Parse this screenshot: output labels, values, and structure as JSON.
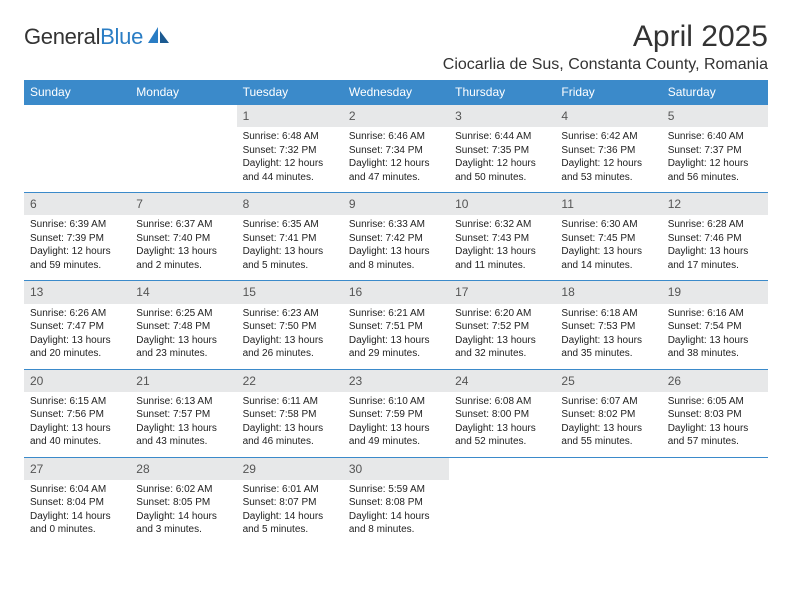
{
  "logo": {
    "part1": "General",
    "part2": "Blue"
  },
  "title": "April 2025",
  "location": "Ciocarlia de Sus, Constanta County, Romania",
  "colors": {
    "header_bg": "#3b8aca",
    "daynum_bg": "#e7e8e9",
    "page_bg": "#ffffff"
  },
  "day_headers": [
    "Sunday",
    "Monday",
    "Tuesday",
    "Wednesday",
    "Thursday",
    "Friday",
    "Saturday"
  ],
  "weeks": [
    [
      null,
      null,
      {
        "n": "1",
        "sr": "6:48 AM",
        "ss": "7:32 PM",
        "dl": "12 hours and 44 minutes."
      },
      {
        "n": "2",
        "sr": "6:46 AM",
        "ss": "7:34 PM",
        "dl": "12 hours and 47 minutes."
      },
      {
        "n": "3",
        "sr": "6:44 AM",
        "ss": "7:35 PM",
        "dl": "12 hours and 50 minutes."
      },
      {
        "n": "4",
        "sr": "6:42 AM",
        "ss": "7:36 PM",
        "dl": "12 hours and 53 minutes."
      },
      {
        "n": "5",
        "sr": "6:40 AM",
        "ss": "7:37 PM",
        "dl": "12 hours and 56 minutes."
      }
    ],
    [
      {
        "n": "6",
        "sr": "6:39 AM",
        "ss": "7:39 PM",
        "dl": "12 hours and 59 minutes."
      },
      {
        "n": "7",
        "sr": "6:37 AM",
        "ss": "7:40 PM",
        "dl": "13 hours and 2 minutes."
      },
      {
        "n": "8",
        "sr": "6:35 AM",
        "ss": "7:41 PM",
        "dl": "13 hours and 5 minutes."
      },
      {
        "n": "9",
        "sr": "6:33 AM",
        "ss": "7:42 PM",
        "dl": "13 hours and 8 minutes."
      },
      {
        "n": "10",
        "sr": "6:32 AM",
        "ss": "7:43 PM",
        "dl": "13 hours and 11 minutes."
      },
      {
        "n": "11",
        "sr": "6:30 AM",
        "ss": "7:45 PM",
        "dl": "13 hours and 14 minutes."
      },
      {
        "n": "12",
        "sr": "6:28 AM",
        "ss": "7:46 PM",
        "dl": "13 hours and 17 minutes."
      }
    ],
    [
      {
        "n": "13",
        "sr": "6:26 AM",
        "ss": "7:47 PM",
        "dl": "13 hours and 20 minutes."
      },
      {
        "n": "14",
        "sr": "6:25 AM",
        "ss": "7:48 PM",
        "dl": "13 hours and 23 minutes."
      },
      {
        "n": "15",
        "sr": "6:23 AM",
        "ss": "7:50 PM",
        "dl": "13 hours and 26 minutes."
      },
      {
        "n": "16",
        "sr": "6:21 AM",
        "ss": "7:51 PM",
        "dl": "13 hours and 29 minutes."
      },
      {
        "n": "17",
        "sr": "6:20 AM",
        "ss": "7:52 PM",
        "dl": "13 hours and 32 minutes."
      },
      {
        "n": "18",
        "sr": "6:18 AM",
        "ss": "7:53 PM",
        "dl": "13 hours and 35 minutes."
      },
      {
        "n": "19",
        "sr": "6:16 AM",
        "ss": "7:54 PM",
        "dl": "13 hours and 38 minutes."
      }
    ],
    [
      {
        "n": "20",
        "sr": "6:15 AM",
        "ss": "7:56 PM",
        "dl": "13 hours and 40 minutes."
      },
      {
        "n": "21",
        "sr": "6:13 AM",
        "ss": "7:57 PM",
        "dl": "13 hours and 43 minutes."
      },
      {
        "n": "22",
        "sr": "6:11 AM",
        "ss": "7:58 PM",
        "dl": "13 hours and 46 minutes."
      },
      {
        "n": "23",
        "sr": "6:10 AM",
        "ss": "7:59 PM",
        "dl": "13 hours and 49 minutes."
      },
      {
        "n": "24",
        "sr": "6:08 AM",
        "ss": "8:00 PM",
        "dl": "13 hours and 52 minutes."
      },
      {
        "n": "25",
        "sr": "6:07 AM",
        "ss": "8:02 PM",
        "dl": "13 hours and 55 minutes."
      },
      {
        "n": "26",
        "sr": "6:05 AM",
        "ss": "8:03 PM",
        "dl": "13 hours and 57 minutes."
      }
    ],
    [
      {
        "n": "27",
        "sr": "6:04 AM",
        "ss": "8:04 PM",
        "dl": "14 hours and 0 minutes."
      },
      {
        "n": "28",
        "sr": "6:02 AM",
        "ss": "8:05 PM",
        "dl": "14 hours and 3 minutes."
      },
      {
        "n": "29",
        "sr": "6:01 AM",
        "ss": "8:07 PM",
        "dl": "14 hours and 5 minutes."
      },
      {
        "n": "30",
        "sr": "5:59 AM",
        "ss": "8:08 PM",
        "dl": "14 hours and 8 minutes."
      },
      null,
      null,
      null
    ]
  ],
  "labels": {
    "sunrise": "Sunrise: ",
    "sunset": "Sunset: ",
    "daylight": "Daylight: "
  }
}
